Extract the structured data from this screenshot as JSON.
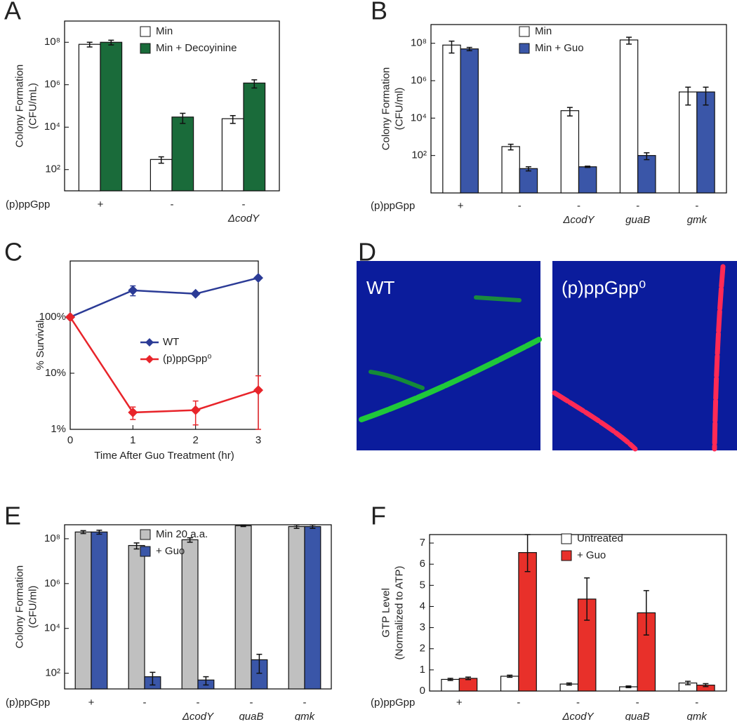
{
  "chart_data": [
    {
      "type": "bar",
      "log_y": true,
      "ylabel": [
        "Colony Formation",
        "(CFU/mL)"
      ],
      "row_label": "(p)ppGpp",
      "categories": [
        "+",
        "-",
        "-"
      ],
      "category_sublabels": [
        null,
        null,
        "ΔcodY"
      ],
      "ylim": [
        10,
        1000000000
      ],
      "yticks": [
        {
          "value": 100,
          "label": "10²"
        },
        {
          "value": 10000,
          "label": "10⁴"
        },
        {
          "value": 1000000,
          "label": "10⁶"
        },
        {
          "value": 100000000,
          "label": "10⁸"
        }
      ],
      "series": [
        {
          "name": "Min",
          "color": "#ffffff",
          "values": [
            80000000,
            300,
            25000
          ],
          "errors": [
            20000000,
            100,
            10000
          ]
        },
        {
          "name": "Min + Decoyinine",
          "color": "#1a6b3a",
          "values": [
            100000000,
            30000,
            1200000
          ],
          "errors": [
            25000000,
            15000,
            500000
          ]
        }
      ]
    },
    {
      "type": "bar",
      "log_y": true,
      "ylabel": [
        "Colony Formation",
        "(CFU/ml)"
      ],
      "row_label": "(p)ppGpp",
      "categories": [
        "+",
        "-",
        "-",
        "-",
        "-"
      ],
      "category_sublabels": [
        null,
        null,
        "ΔcodY",
        "guaB",
        "gmk"
      ],
      "ylim": [
        1,
        1000000000
      ],
      "yticks": [
        {
          "value": 100,
          "label": "10²"
        },
        {
          "value": 10000,
          "label": "10⁴"
        },
        {
          "value": 1000000,
          "label": "10⁶"
        },
        {
          "value": 100000000,
          "label": "10⁸"
        }
      ],
      "series": [
        {
          "name": "Min",
          "color": "#ffffff",
          "values": [
            80000000,
            300,
            25000,
            150000000,
            250000
          ],
          "errors": [
            50000000,
            100,
            12000,
            60000000,
            200000
          ]
        },
        {
          "name": "Min + Guo",
          "color": "#3a56a8",
          "values": [
            50000000,
            20,
            25,
            100,
            250000
          ],
          "errors": [
            10000000,
            5,
            2,
            40,
            200000
          ]
        }
      ]
    },
    {
      "type": "line",
      "log_y": true,
      "ylabel": [
        "% Survival"
      ],
      "xlabel": "Time After Guo Treatment (hr)",
      "x": [
        0,
        1,
        2,
        3
      ],
      "xlim": [
        0,
        3
      ],
      "xticks": [
        0,
        1,
        2,
        3
      ],
      "ylim": [
        1,
        1000
      ],
      "yticks": [
        {
          "value": 1,
          "label": "1%"
        },
        {
          "value": 10,
          "label": "10%"
        },
        {
          "value": 100,
          "label": "100%"
        }
      ],
      "series": [
        {
          "name": "WT",
          "color": "#2b3b96",
          "values": [
            100,
            300,
            260,
            500
          ],
          "errors": [
            0,
            60,
            0,
            0
          ]
        },
        {
          "name": "(p)ppGpp⁰",
          "color": "#e8242a",
          "values": [
            100,
            2,
            2.2,
            5
          ],
          "errors": [
            0,
            0.5,
            1,
            4
          ]
        }
      ]
    },
    {
      "type": "bar",
      "log_y": true,
      "ylabel": [
        "Colony Formation",
        "(CFU/ml)"
      ],
      "row_label": "(p)ppGpp",
      "categories": [
        "+",
        "-",
        "-",
        "-",
        "-"
      ],
      "category_sublabels": [
        null,
        null,
        "ΔcodY",
        "guaB",
        "gmk"
      ],
      "ylim": [
        20,
        420000000
      ],
      "yticks": [
        {
          "value": 100,
          "label": "10²"
        },
        {
          "value": 10000,
          "label": "10⁴"
        },
        {
          "value": 1000000,
          "label": "10⁶"
        },
        {
          "value": 100000000,
          "label": "10⁸"
        }
      ],
      "series": [
        {
          "name": "Min 20 a.a.",
          "color": "#c0c0c0",
          "values": [
            200000000,
            50000000,
            90000000,
            380000000,
            350000000
          ],
          "errors": [
            30000000,
            15000000,
            20000000,
            30000000,
            60000000
          ]
        },
        {
          "name": "+ Guo",
          "color": "#3a56a8",
          "values": [
            200000000,
            70,
            50,
            400,
            350000000
          ],
          "errors": [
            40000000,
            40,
            20,
            300,
            60000000
          ]
        }
      ]
    },
    {
      "type": "bar",
      "log_y": false,
      "ylabel": [
        "GTP Level",
        "(Normalized to ATP)"
      ],
      "row_label": "(p)ppGpp",
      "categories": [
        "+",
        "-",
        "-",
        "-",
        "-"
      ],
      "category_sublabels": [
        null,
        null,
        "ΔcodY",
        "guaB",
        "gmk"
      ],
      "ylim": [
        0,
        7.4
      ],
      "yticks": [
        0,
        1,
        2,
        3,
        4,
        5,
        6,
        7
      ],
      "series": [
        {
          "name": "Untreated",
          "color": "#ffffff",
          "values": [
            0.55,
            0.7,
            0.33,
            0.2,
            0.38
          ],
          "errors": [
            0.05,
            0.05,
            0.05,
            0.04,
            0.08
          ]
        },
        {
          "name": "+ Guo",
          "color": "#e8302a",
          "values": [
            0.6,
            6.55,
            4.35,
            3.7,
            0.28
          ],
          "errors": [
            0.06,
            0.9,
            1.0,
            1.05,
            0.07
          ]
        }
      ]
    }
  ],
  "figure": {
    "panel_labels": [
      "A",
      "B",
      "C",
      "D",
      "E",
      "F"
    ],
    "micrographs": [
      "WT",
      "(p)ppGpp⁰"
    ]
  }
}
